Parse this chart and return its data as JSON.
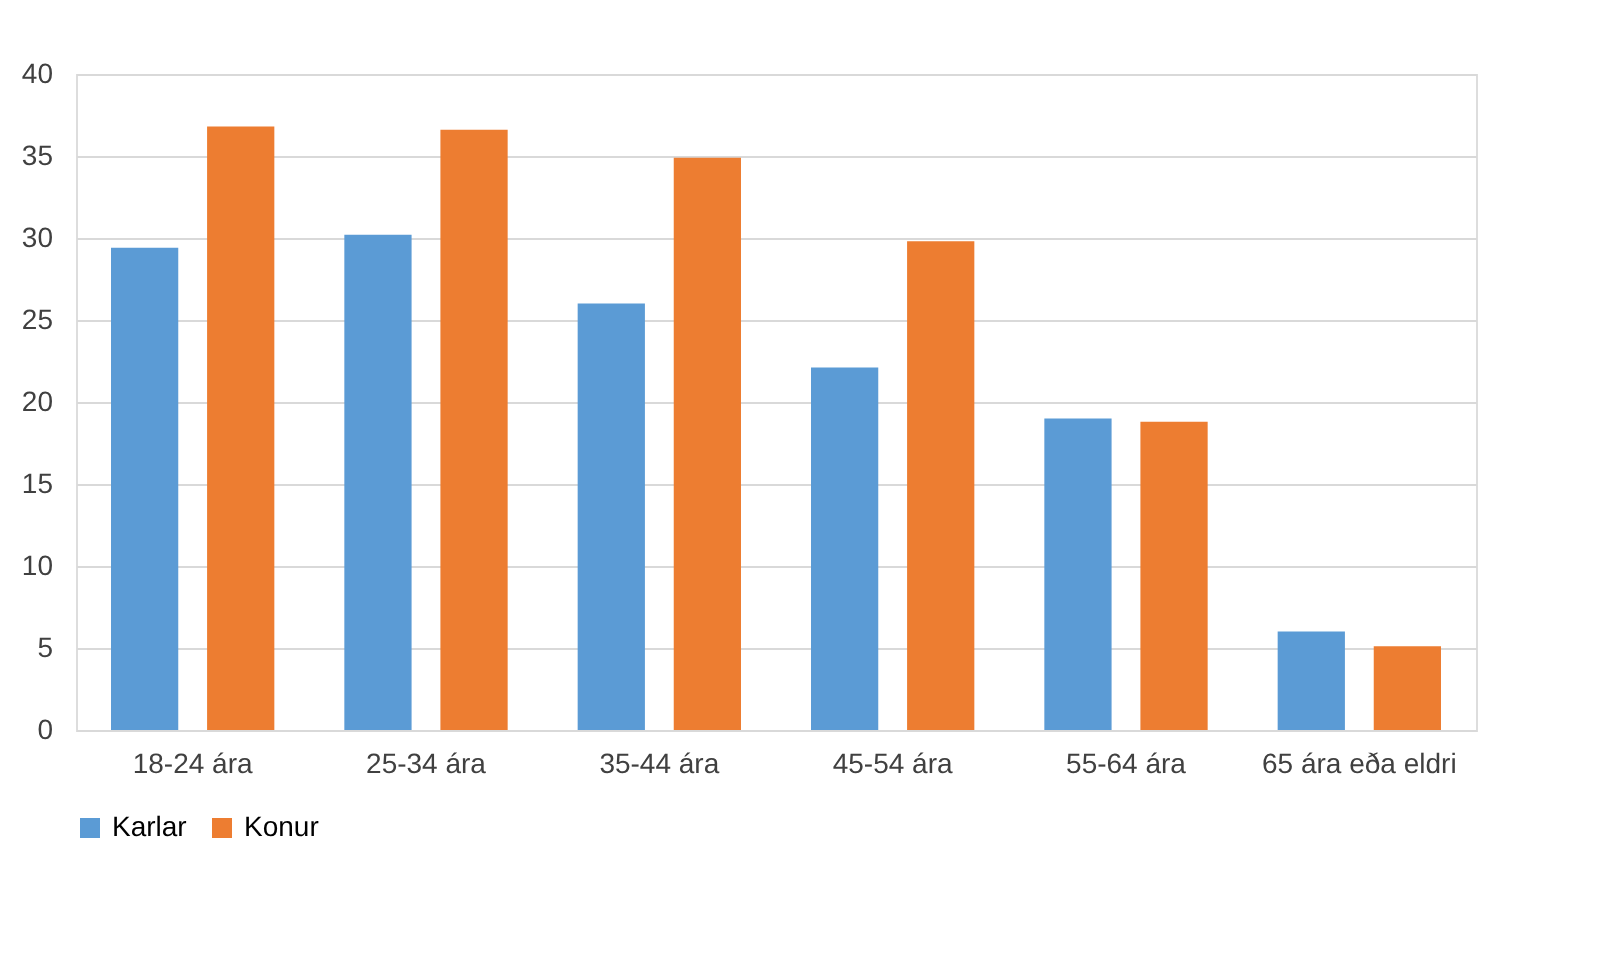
{
  "chart_data": {
    "type": "bar",
    "categories": [
      "18-24 ára",
      "25-34 ára",
      "35-44 ára",
      "45-54 ára",
      "55-64 ára",
      "65 ára eða eldri"
    ],
    "series": [
      {
        "name": "Karlar",
        "color": "#5b9bd5",
        "values": [
          29.4,
          30.2,
          26.0,
          22.1,
          19.0,
          6.0
        ]
      },
      {
        "name": "Konur",
        "color": "#ed7d31",
        "values": [
          36.8,
          36.6,
          34.9,
          29.8,
          18.8,
          5.1
        ]
      }
    ],
    "ylim": [
      0,
      40
    ],
    "yticks": [
      0,
      5,
      10,
      15,
      20,
      25,
      30,
      35,
      40
    ],
    "grid": "y",
    "legend": "bottom"
  }
}
